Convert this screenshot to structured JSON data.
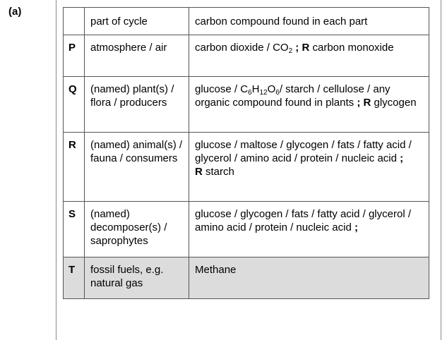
{
  "part_label": "(a)",
  "table": {
    "headers": [
      "",
      "part of cycle",
      "carbon compound found in each part"
    ],
    "rows": {
      "P": {
        "letter": "P",
        "part": "atmosphere / air",
        "compound_main": "carbon dioxide / CO",
        "compound_sub": "2",
        "compound_sep": " ; ",
        "reject_label": "R",
        "reject_text": " carbon monoxide"
      },
      "Q": {
        "letter": "Q",
        "part": "(named) plant(s) / flora / producers",
        "compound_a": "glucose / C",
        "sub1": "6",
        "compound_b": "H",
        "sub2": "12",
        "compound_c": "O",
        "sub3": "6",
        "compound_d": "/ starch / cellulose / any organic compound found in plants",
        "compound_sep": " ; ",
        "reject_label": "R",
        "reject_text": " glycogen"
      },
      "R": {
        "letter": "R",
        "part": "(named) animal(s) / fauna / consumers",
        "compound": "glucose / maltose / glycogen / fats / fatty acid / glycerol / amino acid / protein / nucleic acid",
        "compound_sep": " ;",
        "reject_label": "R",
        "reject_text": " starch"
      },
      "S": {
        "letter": "S",
        "part": "(named) decomposer(s) / saprophytes",
        "compound": "glucose / glycogen / fats / fatty acid / glycerol / amino acid / protein / nucleic acid",
        "compound_sep": " ;"
      },
      "T": {
        "letter": "T",
        "part": "fossil fuels, e.g. natural gas",
        "compound": "Methane"
      }
    }
  }
}
